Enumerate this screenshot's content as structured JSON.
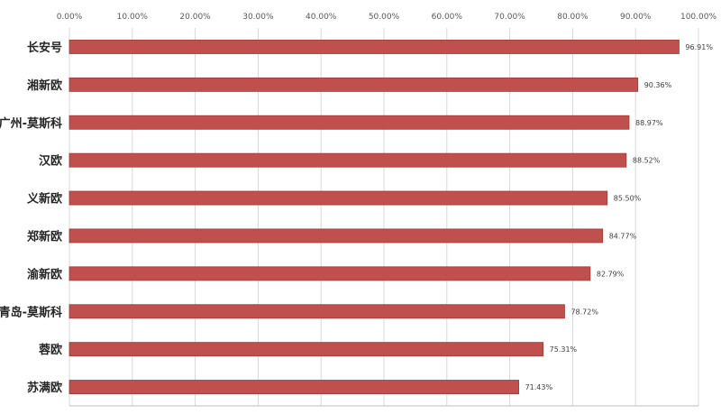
{
  "chart_data": {
    "type": "bar",
    "orientation": "horizontal",
    "categories": [
      "长安号",
      "湘新欧",
      "广州-莫斯科",
      "汉欧",
      "义新欧",
      "郑新欧",
      "渝新欧",
      "青岛-莫斯科",
      "蓉欧",
      "苏满欧"
    ],
    "values": [
      96.91,
      90.36,
      88.97,
      88.52,
      85.5,
      84.77,
      82.79,
      78.72,
      75.31,
      71.43
    ],
    "data_labels": [
      "96.91%",
      "90.36%",
      "88.97%",
      "88.52%",
      "85.50%",
      "84.77%",
      "82.79%",
      "78.72%",
      "75.31%",
      "71.43%"
    ],
    "xlim": [
      0,
      100
    ],
    "xticks": [
      0,
      10,
      20,
      30,
      40,
      50,
      60,
      70,
      80,
      90,
      100
    ],
    "xtick_labels": [
      "0.00%",
      "10.00%",
      "20.00%",
      "30.00%",
      "40.00%",
      "50.00%",
      "60.00%",
      "70.00%",
      "80.00%",
      "90.00%",
      "100.00%"
    ],
    "x_axis_position": "top",
    "grid": true,
    "bar_color": "#c0504d",
    "bar_stroke": "#a33a38",
    "title": "",
    "xlabel": "",
    "ylabel": ""
  }
}
